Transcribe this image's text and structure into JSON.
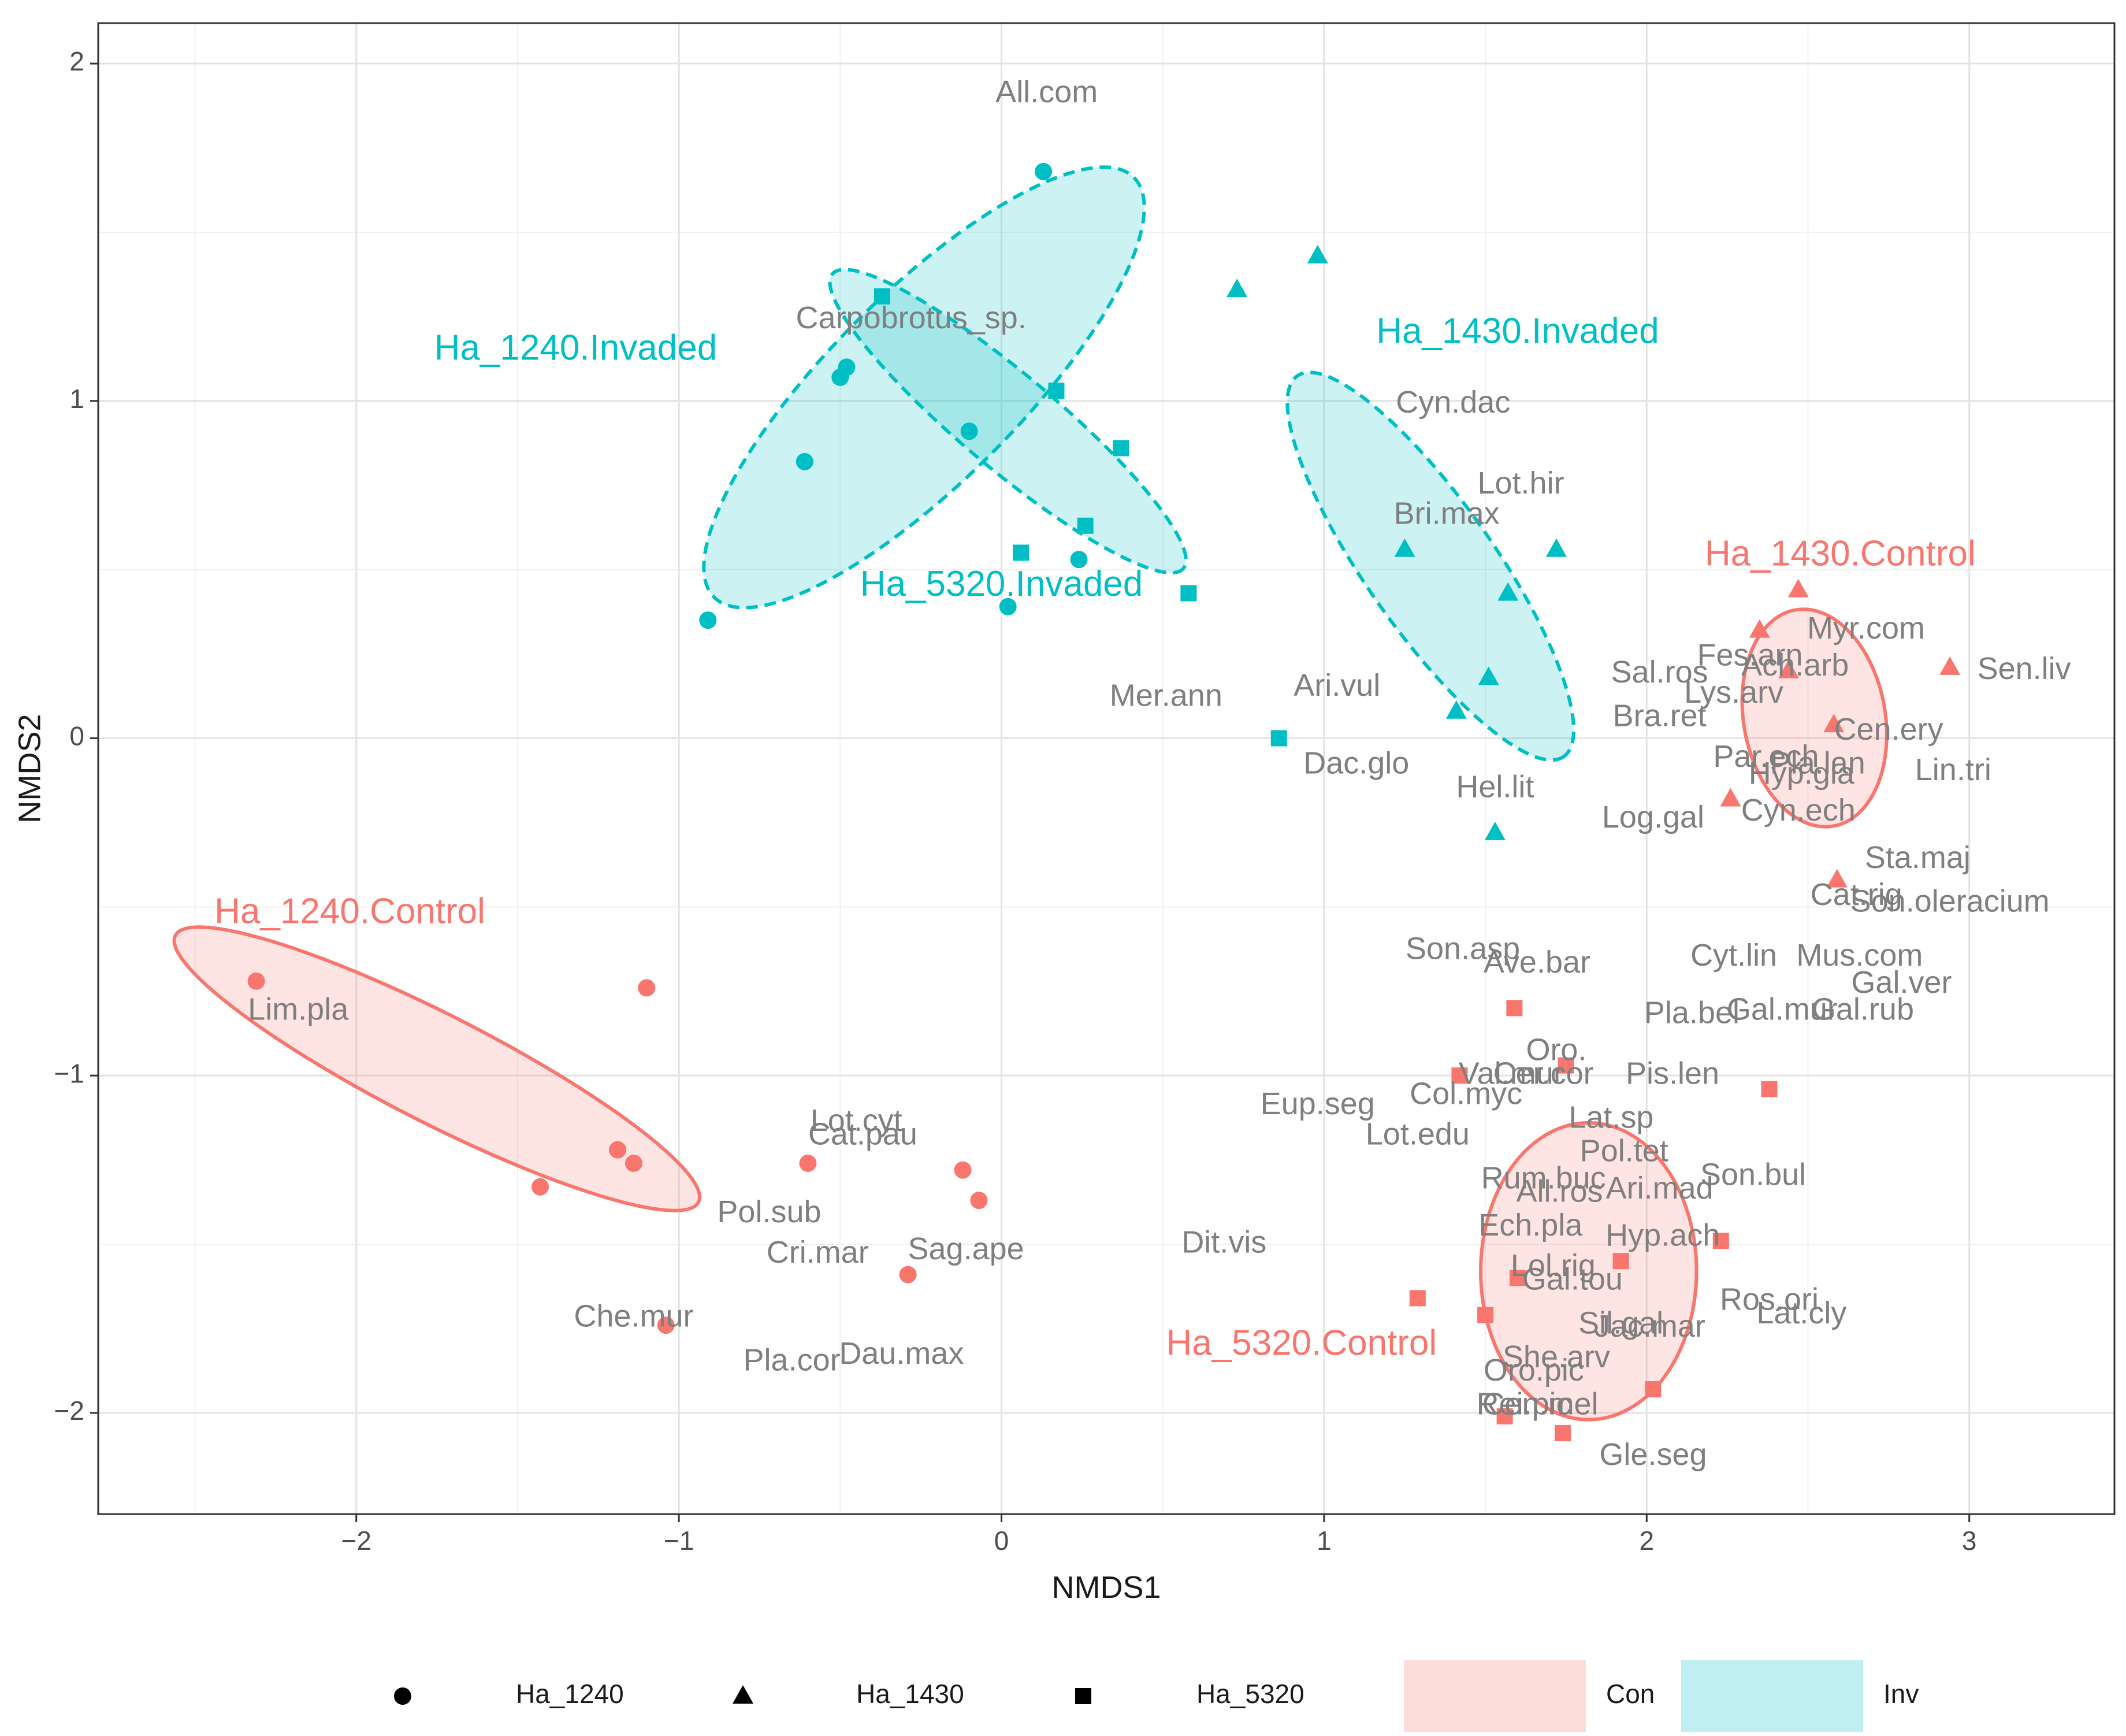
{
  "chart_data": {
    "type": "scatter",
    "xlabel": "NMDS1",
    "ylabel": "NMDS2",
    "xlim": [
      -2.8,
      3.45
    ],
    "ylim": [
      -2.3,
      2.12
    ],
    "x_ticks": [
      -2,
      -1,
      0,
      1,
      2,
      3
    ],
    "y_ticks": [
      -2,
      -1,
      0,
      1,
      2
    ],
    "x_tick_labels": [
      "−2",
      "−1",
      "0",
      "1",
      "2",
      "3"
    ],
    "y_tick_labels": [
      "−2",
      "−1",
      "0",
      "1",
      "2"
    ],
    "grid": true,
    "colors": {
      "Con": "#F8766D",
      "Inv": "#00BFC4"
    },
    "points": [
      {
        "x": 0.13,
        "y": 1.68,
        "habitat": "Ha_1240",
        "treatment": "Inv"
      },
      {
        "x": -0.48,
        "y": 1.1,
        "habitat": "Ha_1240",
        "treatment": "Inv"
      },
      {
        "x": -0.5,
        "y": 1.07,
        "habitat": "Ha_1240",
        "treatment": "Inv"
      },
      {
        "x": -0.61,
        "y": 0.82,
        "habitat": "Ha_1240",
        "treatment": "Inv"
      },
      {
        "x": -0.1,
        "y": 0.91,
        "habitat": "Ha_1240",
        "treatment": "Inv"
      },
      {
        "x": 0.24,
        "y": 0.53,
        "habitat": "Ha_1240",
        "treatment": "Inv"
      },
      {
        "x": 0.02,
        "y": 0.39,
        "habitat": "Ha_1240",
        "treatment": "Inv"
      },
      {
        "x": -0.91,
        "y": 0.35,
        "habitat": "Ha_1240",
        "treatment": "Inv"
      },
      {
        "x": 0.98,
        "y": 1.43,
        "habitat": "Ha_1430",
        "treatment": "Inv"
      },
      {
        "x": 0.73,
        "y": 1.33,
        "habitat": "Ha_1430",
        "treatment": "Inv"
      },
      {
        "x": 1.25,
        "y": 0.56,
        "habitat": "Ha_1430",
        "treatment": "Inv"
      },
      {
        "x": 1.72,
        "y": 0.56,
        "habitat": "Ha_1430",
        "treatment": "Inv"
      },
      {
        "x": 1.57,
        "y": 0.43,
        "habitat": "Ha_1430",
        "treatment": "Inv"
      },
      {
        "x": 1.51,
        "y": 0.18,
        "habitat": "Ha_1430",
        "treatment": "Inv"
      },
      {
        "x": 1.41,
        "y": 0.08,
        "habitat": "Ha_1430",
        "treatment": "Inv"
      },
      {
        "x": 1.53,
        "y": -0.28,
        "habitat": "Ha_1430",
        "treatment": "Inv"
      },
      {
        "x": -0.37,
        "y": 1.31,
        "habitat": "Ha_5320",
        "treatment": "Inv"
      },
      {
        "x": 0.17,
        "y": 1.03,
        "habitat": "Ha_5320",
        "treatment": "Inv"
      },
      {
        "x": 0.37,
        "y": 0.86,
        "habitat": "Ha_5320",
        "treatment": "Inv"
      },
      {
        "x": 0.26,
        "y": 0.63,
        "habitat": "Ha_5320",
        "treatment": "Inv"
      },
      {
        "x": 0.06,
        "y": 0.55,
        "habitat": "Ha_5320",
        "treatment": "Inv"
      },
      {
        "x": 0.58,
        "y": 0.43,
        "habitat": "Ha_5320",
        "treatment": "Inv"
      },
      {
        "x": 0.86,
        "y": 0.0,
        "habitat": "Ha_5320",
        "treatment": "Inv"
      },
      {
        "x": -2.31,
        "y": -0.72,
        "habitat": "Ha_1240",
        "treatment": "Con"
      },
      {
        "x": -1.1,
        "y": -0.74,
        "habitat": "Ha_1240",
        "treatment": "Con"
      },
      {
        "x": -1.19,
        "y": -1.22,
        "habitat": "Ha_1240",
        "treatment": "Con"
      },
      {
        "x": -1.14,
        "y": -1.26,
        "habitat": "Ha_1240",
        "treatment": "Con"
      },
      {
        "x": -1.43,
        "y": -1.33,
        "habitat": "Ha_1240",
        "treatment": "Con"
      },
      {
        "x": -0.6,
        "y": -1.26,
        "habitat": "Ha_1240",
        "treatment": "Con"
      },
      {
        "x": -0.12,
        "y": -1.28,
        "habitat": "Ha_1240",
        "treatment": "Con"
      },
      {
        "x": -0.07,
        "y": -1.37,
        "habitat": "Ha_1240",
        "treatment": "Con"
      },
      {
        "x": -0.29,
        "y": -1.59,
        "habitat": "Ha_1240",
        "treatment": "Con"
      },
      {
        "x": -1.04,
        "y": -1.74,
        "habitat": "Ha_1240",
        "treatment": "Con"
      },
      {
        "x": 2.47,
        "y": 0.44,
        "habitat": "Ha_1430",
        "treatment": "Con"
      },
      {
        "x": 2.35,
        "y": 0.32,
        "habitat": "Ha_1430",
        "treatment": "Con"
      },
      {
        "x": 2.44,
        "y": 0.2,
        "habitat": "Ha_1430",
        "treatment": "Con"
      },
      {
        "x": 2.94,
        "y": 0.21,
        "habitat": "Ha_1430",
        "treatment": "Con"
      },
      {
        "x": 2.58,
        "y": 0.04,
        "habitat": "Ha_1430",
        "treatment": "Con"
      },
      {
        "x": 2.26,
        "y": -0.18,
        "habitat": "Ha_1430",
        "treatment": "Con"
      },
      {
        "x": 2.59,
        "y": -0.42,
        "habitat": "Ha_1430",
        "treatment": "Con"
      },
      {
        "x": 1.59,
        "y": -0.8,
        "habitat": "Ha_5320",
        "treatment": "Con"
      },
      {
        "x": 1.42,
        "y": -1.0,
        "habitat": "Ha_5320",
        "treatment": "Con"
      },
      {
        "x": 1.75,
        "y": -0.97,
        "habitat": "Ha_5320",
        "treatment": "Con"
      },
      {
        "x": 2.38,
        "y": -1.04,
        "habitat": "Ha_5320",
        "treatment": "Con"
      },
      {
        "x": 2.23,
        "y": -1.49,
        "habitat": "Ha_5320",
        "treatment": "Con"
      },
      {
        "x": 1.92,
        "y": -1.55,
        "habitat": "Ha_5320",
        "treatment": "Con"
      },
      {
        "x": 1.6,
        "y": -1.6,
        "habitat": "Ha_5320",
        "treatment": "Con"
      },
      {
        "x": 1.29,
        "y": -1.66,
        "habitat": "Ha_5320",
        "treatment": "Con"
      },
      {
        "x": 1.5,
        "y": -1.71,
        "habitat": "Ha_5320",
        "treatment": "Con"
      },
      {
        "x": 2.02,
        "y": -1.93,
        "habitat": "Ha_5320",
        "treatment": "Con"
      },
      {
        "x": 1.56,
        "y": -2.01,
        "habitat": "Ha_5320",
        "treatment": "Con"
      },
      {
        "x": 1.74,
        "y": -2.06,
        "habitat": "Ha_5320",
        "treatment": "Con"
      }
    ],
    "ellipses": [
      {
        "label": "Ha_1240.Invaded",
        "treatment": "Inv",
        "cx": -0.24,
        "cy": 1.04,
        "rx": 0.92,
        "ry": 0.28,
        "angle_deg": 45
      },
      {
        "label": "Ha_5320.Invaded",
        "treatment": "Inv",
        "cx": 0.02,
        "cy": 0.94,
        "rx": 0.71,
        "ry": 0.14,
        "angle_deg": -40
      },
      {
        "label": "Ha_1430.Invaded",
        "treatment": "Inv",
        "cx": 1.33,
        "cy": 0.51,
        "rx": 0.72,
        "ry": 0.19,
        "angle_deg": -55
      },
      {
        "label": "Ha_1430.Control",
        "treatment": "Con",
        "cx": 2.52,
        "cy": 0.06,
        "rx": 0.34,
        "ry": 0.21,
        "angle_deg": -80
      },
      {
        "label": "Ha_1240.Control",
        "treatment": "Con",
        "cx": -1.75,
        "cy": -0.98,
        "rx": 0.91,
        "ry": 0.16,
        "angle_deg": -27
      },
      {
        "label": "Ha_5320.Control",
        "treatment": "Con",
        "cx": 1.82,
        "cy": -1.58,
        "rx": 0.46,
        "ry": 0.32,
        "angle_deg": -90
      }
    ],
    "group_labels": [
      {
        "text": "Ha_1240.Invaded",
        "x": -1.32,
        "y": 1.15,
        "treatment": "Inv"
      },
      {
        "text": "Ha_1430.Invaded",
        "x": 1.6,
        "y": 1.2,
        "treatment": "Inv"
      },
      {
        "text": "Ha_5320.Invaded",
        "x": 0.0,
        "y": 0.45,
        "treatment": "Inv"
      },
      {
        "text": "Ha_1430.Control",
        "x": 2.6,
        "y": 0.54,
        "treatment": "Con"
      },
      {
        "text": "Ha_1240.Control",
        "x": -2.02,
        "y": -0.52,
        "treatment": "Con"
      },
      {
        "text": "Ha_5320.Control",
        "x": 0.93,
        "y": -1.8,
        "treatment": "Con"
      }
    ],
    "species_labels": [
      {
        "text": "All.com",
        "x": 0.14,
        "y": 1.91
      },
      {
        "text": "Carpobrotus_sp.",
        "x": -0.28,
        "y": 1.24
      },
      {
        "text": "Cyn.dac",
        "x": 1.4,
        "y": 0.99
      },
      {
        "text": "Lot.hir",
        "x": 1.61,
        "y": 0.75
      },
      {
        "text": "Bri.max",
        "x": 1.38,
        "y": 0.66
      },
      {
        "text": "Mer.ann",
        "x": 0.51,
        "y": 0.12
      },
      {
        "text": "Ari.vul",
        "x": 1.04,
        "y": 0.15
      },
      {
        "text": "Dac.glo",
        "x": 1.1,
        "y": -0.08
      },
      {
        "text": "Hel.lit",
        "x": 1.53,
        "y": -0.15
      },
      {
        "text": "Sal.ros",
        "x": 2.04,
        "y": 0.19
      },
      {
        "text": "Lys.arv",
        "x": 2.27,
        "y": 0.13
      },
      {
        "text": "Fes.arn",
        "x": 2.32,
        "y": 0.24
      },
      {
        "text": "Myr.com",
        "x": 2.68,
        "y": 0.32
      },
      {
        "text": "Ach.arb",
        "x": 2.46,
        "y": 0.21
      },
      {
        "text": "Sen.liv",
        "x": 3.17,
        "y": 0.2
      },
      {
        "text": "Bra.ret",
        "x": 2.04,
        "y": 0.06
      },
      {
        "text": "Cen.ery",
        "x": 2.75,
        "y": 0.02
      },
      {
        "text": "Par.ech",
        "x": 2.37,
        "y": -0.06
      },
      {
        "text": "Pla.lan",
        "x": 2.53,
        "y": -0.08
      },
      {
        "text": "Hyp.gla",
        "x": 2.48,
        "y": -0.11
      },
      {
        "text": "Lin.tri",
        "x": 2.95,
        "y": -0.1
      },
      {
        "text": "Log.gal",
        "x": 2.02,
        "y": -0.24
      },
      {
        "text": "Cyn.ech",
        "x": 2.47,
        "y": -0.22
      },
      {
        "text": "Sta.maj",
        "x": 2.84,
        "y": -0.36
      },
      {
        "text": "Cat.rig",
        "x": 2.65,
        "y": -0.47
      },
      {
        "text": "Son.oleracium",
        "x": 2.94,
        "y": -0.49
      },
      {
        "text": "Son.asp",
        "x": 1.43,
        "y": -0.63
      },
      {
        "text": "Ave.bar",
        "x": 1.66,
        "y": -0.67
      },
      {
        "text": "Cyt.lin",
        "x": 2.27,
        "y": -0.65
      },
      {
        "text": "Mus.com",
        "x": 2.66,
        "y": -0.65
      },
      {
        "text": "Gal.ver",
        "x": 2.79,
        "y": -0.73
      },
      {
        "text": "Pla.bel",
        "x": 2.14,
        "y": -0.82
      },
      {
        "text": "Gal.mur",
        "x": 2.42,
        "y": -0.81
      },
      {
        "text": "Gal.rub",
        "x": 2.67,
        "y": -0.81
      },
      {
        "text": "Oro.",
        "x": 1.72,
        "y": -0.93
      },
      {
        "text": "Val.mur",
        "x": 1.58,
        "y": -1.0
      },
      {
        "text": "Cer.cor",
        "x": 1.68,
        "y": -1.0
      },
      {
        "text": "Pis.len",
        "x": 2.08,
        "y": -1.0
      },
      {
        "text": "Col.myc",
        "x": 1.44,
        "y": -1.06
      },
      {
        "text": "Eup.seg",
        "x": 0.98,
        "y": -1.09
      },
      {
        "text": "Lot.edu",
        "x": 1.29,
        "y": -1.18
      },
      {
        "text": "Lat.sp",
        "x": 1.89,
        "y": -1.13
      },
      {
        "text": "Pol.tet",
        "x": 1.93,
        "y": -1.23
      },
      {
        "text": "Rum.buc",
        "x": 1.68,
        "y": -1.31
      },
      {
        "text": "Son.bul",
        "x": 2.33,
        "y": -1.3
      },
      {
        "text": "Ari.mad",
        "x": 2.04,
        "y": -1.34
      },
      {
        "text": "All.ros",
        "x": 1.73,
        "y": -1.35
      },
      {
        "text": "Ech.pla",
        "x": 1.64,
        "y": -1.45
      },
      {
        "text": "Hyp.ach",
        "x": 2.05,
        "y": -1.48
      },
      {
        "text": "Lol.rig",
        "x": 1.71,
        "y": -1.57
      },
      {
        "text": "Gal.tou",
        "x": 1.77,
        "y": -1.61
      },
      {
        "text": "Ros.ori",
        "x": 2.38,
        "y": -1.67
      },
      {
        "text": "Lat.cly",
        "x": 2.48,
        "y": -1.71
      },
      {
        "text": "Sil.gal",
        "x": 1.92,
        "y": -1.74
      },
      {
        "text": "Jac.mar",
        "x": 2.01,
        "y": -1.75
      },
      {
        "text": "She.arv",
        "x": 1.72,
        "y": -1.84
      },
      {
        "text": "Oro.pic",
        "x": 1.65,
        "y": -1.88
      },
      {
        "text": "Rei.pic",
        "x": 1.62,
        "y": -1.98
      },
      {
        "text": "Cen.mel",
        "x": 1.67,
        "y": -1.98
      },
      {
        "text": "Gle.seg",
        "x": 2.02,
        "y": -2.13
      },
      {
        "text": "Lim.pla",
        "x": -2.18,
        "y": -0.81
      },
      {
        "text": "Lot.cyt",
        "x": -0.45,
        "y": -1.14
      },
      {
        "text": "Cat.pau",
        "x": -0.43,
        "y": -1.18
      },
      {
        "text": "Pol.sub",
        "x": -0.72,
        "y": -1.41
      },
      {
        "text": "Cri.mar",
        "x": -0.57,
        "y": -1.53
      },
      {
        "text": "Sag.ape",
        "x": -0.11,
        "y": -1.52
      },
      {
        "text": "Dit.vis",
        "x": 0.69,
        "y": -1.5
      },
      {
        "text": "Che.mur",
        "x": -1.14,
        "y": -1.72
      },
      {
        "text": "Pla.cor",
        "x": -0.65,
        "y": -1.85
      },
      {
        "text": "Dau.max",
        "x": -0.31,
        "y": -1.83
      }
    ],
    "legend": {
      "shapes": [
        {
          "label": "Ha_1240",
          "shape": "circle"
        },
        {
          "label": "Ha_1430",
          "shape": "triangle"
        },
        {
          "label": "Ha_5320",
          "shape": "square"
        }
      ],
      "fills": [
        {
          "label": "Con",
          "color": "#F8766D"
        },
        {
          "label": "Inv",
          "color": "#00BFC4"
        }
      ],
      "position": "bottom"
    }
  }
}
